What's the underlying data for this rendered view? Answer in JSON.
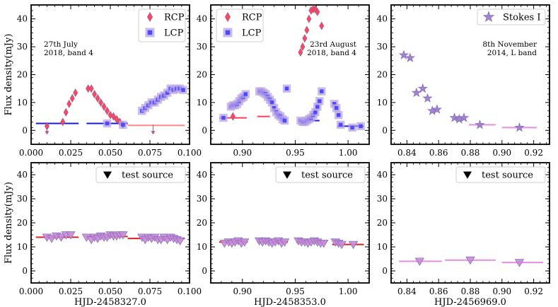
{
  "figure": {
    "ylabel": "Flux density(mJy)"
  },
  "chart_data": [
    {
      "id": "p1",
      "type": "scatter",
      "row": 0,
      "col": 0,
      "xlim": [
        0.0,
        0.1
      ],
      "ylim": [
        -5,
        45
      ],
      "xticks": [
        0.0,
        0.025,
        0.05,
        0.075,
        0.1
      ],
      "xtick_labels": [
        "0.000",
        "0.025",
        "0.050",
        "0.075",
        "0.100"
      ],
      "yticks": [
        0,
        10,
        20,
        30,
        40
      ],
      "ytick_labels": [
        "0",
        "10",
        "20",
        "30",
        "40"
      ],
      "xlabel": "",
      "ylabel": "Flux density(mJy)",
      "show_xtick_labels": true,
      "annotation": [
        "27th July",
        "2018, band 4"
      ],
      "annotation_anchor": "upper-left",
      "legend": {
        "placement": "top-right",
        "entries": [
          {
            "label": "RCP",
            "marker": "diamond",
            "color": "#ff3d5a"
          },
          {
            "label": "LCP",
            "marker": "square",
            "color": "#4a4aff"
          }
        ]
      },
      "series": [
        {
          "name": "RCP",
          "marker": "diamond",
          "color": "#ff3d5a",
          "x": [
            0.01,
            0.02,
            0.022,
            0.024,
            0.026,
            0.028,
            0.036,
            0.038,
            0.04,
            0.042,
            0.044,
            0.046,
            0.048,
            0.05,
            0.052,
            0.054,
            0.056,
            0.058
          ],
          "y": [
            1.5,
            3.0,
            6.5,
            9.5,
            11.5,
            13.5,
            15.0,
            15.0,
            13.0,
            11.5,
            10.0,
            8.5,
            7.0,
            5.5,
            5.0,
            4.0,
            3.0,
            2.0
          ]
        },
        {
          "name": "LCP",
          "marker": "square",
          "color": "#4a4aff",
          "x": [
            0.048,
            0.058,
            0.07,
            0.072,
            0.074,
            0.076,
            0.078,
            0.08,
            0.082,
            0.084,
            0.086,
            0.088,
            0.09,
            0.092,
            0.094,
            0.096
          ],
          "y": [
            2.5,
            2.0,
            7.0,
            8.0,
            9.0,
            10.0,
            10.0,
            11.0,
            12.0,
            12.5,
            13.5,
            15.0,
            14.5,
            15.0,
            15.0,
            14.5
          ]
        }
      ],
      "upper_limits": [
        {
          "x": 0.01,
          "y": 0.0,
          "color": "#ff3d5a"
        },
        {
          "x": 0.077,
          "y": 0.0,
          "color": "#ff3d5a"
        }
      ],
      "lines": [
        {
          "x": [
            0.003,
            0.03
          ],
          "y": 2.5,
          "color": "#1a1ad8"
        },
        {
          "x": 0.035,
          "x_end": 0.061,
          "y": 2.5,
          "color": "#1a1ad8"
        },
        {
          "x": 0.061,
          "x_end": 0.097,
          "y": 1.8,
          "color": "#ff8a8a"
        }
      ]
    },
    {
      "id": "p2",
      "type": "scatter",
      "row": 0,
      "col": 1,
      "xlim": [
        0.87,
        1.02
      ],
      "ylim": [
        -5,
        45
      ],
      "xticks": [
        0.9,
        0.95,
        1.0
      ],
      "xtick_labels": [
        "0.90",
        "0.95",
        "1.00"
      ],
      "yticks": [
        0,
        10,
        20,
        30,
        40
      ],
      "ytick_labels": [
        "0",
        "10",
        "20",
        "30",
        "40"
      ],
      "xlabel": "",
      "ylabel": "",
      "annotation": [
        "23rd August",
        "2018, band 4"
      ],
      "annotation_anchor": "upper-right",
      "legend": {
        "placement": "top-left",
        "entries": [
          {
            "label": "RCP",
            "marker": "diamond",
            "color": "#ff3d5a"
          },
          {
            "label": "LCP",
            "marker": "square",
            "color": "#4a4aff"
          }
        ]
      },
      "series": [
        {
          "name": "RCP",
          "marker": "diamond",
          "color": "#ff3d5a",
          "x": [
            0.891,
            0.955,
            0.957,
            0.959,
            0.961,
            0.963,
            0.965,
            0.967,
            0.969,
            0.971,
            0.975
          ],
          "y": [
            5.0,
            28.0,
            30.0,
            33.0,
            36.0,
            40.0,
            43.0,
            43.5,
            43.5,
            42.5,
            37.5
          ]
        },
        {
          "name": "LCP",
          "marker": "square",
          "color": "#4a4aff",
          "x": [
            0.882,
            0.889,
            0.891,
            0.893,
            0.895,
            0.897,
            0.899,
            0.901,
            0.903,
            0.916,
            0.918,
            0.92,
            0.922,
            0.924,
            0.926,
            0.928,
            0.93,
            0.932,
            0.934,
            0.936,
            0.938,
            0.94,
            0.942,
            0.955,
            0.957,
            0.959,
            0.961,
            0.963,
            0.965,
            0.967,
            0.969,
            0.971,
            0.973,
            0.975,
            0.987,
            0.989,
            0.991,
            0.993,
            1.004,
            1.012
          ],
          "y": [
            4.5,
            8.5,
            9.0,
            9.0,
            9.5,
            10.5,
            11.5,
            12.0,
            13.0,
            14.0,
            14.0,
            13.5,
            13.0,
            12.0,
            11.0,
            10.0,
            8.0,
            6.5,
            5.5,
            5.0,
            4.0,
            3.5,
            15.0,
            3.5,
            3.0,
            3.0,
            3.5,
            4.0,
            4.5,
            5.5,
            6.5,
            8.5,
            10.5,
            14.0,
            9.5,
            8.0,
            5.5,
            2.0,
            1.0,
            1.5
          ]
        }
      ],
      "upper_limits": [],
      "lines": [
        {
          "x": 0.878,
          "x_end": 0.904,
          "y": 4.5,
          "color": "#ff3d5a"
        },
        {
          "x": 0.914,
          "x_end": 0.926,
          "y": 5.0,
          "color": "#ff3d5a"
        },
        {
          "x": 0.953,
          "x_end": 0.973,
          "y": 3.5,
          "color": "#1a1ad8"
        },
        {
          "x": 0.99,
          "x_end": 1.015,
          "y": 1.5,
          "color": "#1a1ad8"
        }
      ]
    },
    {
      "id": "p3",
      "type": "scatter",
      "row": 0,
      "col": 2,
      "xlim": [
        0.83,
        0.93
      ],
      "ylim": [
        -5,
        45
      ],
      "xticks": [
        0.84,
        0.86,
        0.88,
        0.9,
        0.92
      ],
      "xtick_labels": [
        "0.84",
        "0.86",
        "0.88",
        "0.90",
        "0.92"
      ],
      "yticks": [
        0,
        10,
        20,
        30,
        40
      ],
      "ytick_labels": [
        "0",
        "10",
        "20",
        "30",
        "40"
      ],
      "xlabel": "",
      "ylabel": "",
      "annotation": [
        "8th November",
        "2014, L band"
      ],
      "annotation_anchor": "upper-right",
      "legend": {
        "placement": "top-right",
        "entries": [
          {
            "label": "Stokes I",
            "marker": "star",
            "color": "#9a7fc8"
          }
        ]
      },
      "series": [
        {
          "name": "Stokes I",
          "marker": "star",
          "color": "#9a7fc8",
          "x": [
            0.838,
            0.842,
            0.846,
            0.85,
            0.853,
            0.856,
            0.859,
            0.87,
            0.873,
            0.876,
            0.886,
            0.911
          ],
          "y": [
            27.0,
            26.0,
            13.5,
            15.0,
            11.5,
            7.0,
            7.5,
            4.5,
            4.0,
            4.5,
            2.0,
            1.0
          ]
        }
      ],
      "upper_limits": [],
      "lines": [
        {
          "x": 0.879,
          "x_end": 0.896,
          "y": 2.0,
          "color": "#e58de0"
        },
        {
          "x": 0.9,
          "x_end": 0.922,
          "y": 1.0,
          "color": "#e58de0"
        }
      ]
    },
    {
      "id": "p4",
      "type": "scatter",
      "row": 1,
      "col": 0,
      "xlim": [
        0.0,
        0.1
      ],
      "ylim": [
        -5,
        45
      ],
      "xticks": [
        0.0,
        0.025,
        0.05,
        0.075,
        0.1
      ],
      "xtick_labels": [
        "0.000",
        "0.025",
        "0.050",
        "0.075",
        "0.100"
      ],
      "yticks": [
        0,
        10,
        20,
        30,
        40
      ],
      "ytick_labels": [
        "0",
        "10",
        "20",
        "30",
        "40"
      ],
      "xlabel": "HJD-2458327.0",
      "ylabel": "Flux density(mJy)",
      "legend": {
        "placement": "top-right",
        "entries": [
          {
            "label": "test source",
            "marker": "triangle-down",
            "color": "#000000"
          }
        ]
      },
      "series": [
        {
          "name": "test source",
          "marker": "triangle-down",
          "color": "#c98bd6",
          "x": [
            0.01,
            0.013,
            0.016,
            0.019,
            0.022,
            0.025,
            0.035,
            0.038,
            0.04,
            0.042,
            0.044,
            0.046,
            0.048,
            0.05,
            0.052,
            0.054,
            0.056,
            0.058,
            0.07,
            0.072,
            0.074,
            0.076,
            0.078,
            0.08,
            0.082,
            0.084,
            0.086,
            0.088,
            0.09,
            0.092,
            0.094
          ],
          "y": [
            14.0,
            13.5,
            14.5,
            14.0,
            15.0,
            15.0,
            14.0,
            13.0,
            14.0,
            13.5,
            14.5,
            14.0,
            14.0,
            15.0,
            14.5,
            14.5,
            15.0,
            15.0,
            14.0,
            13.0,
            14.0,
            13.5,
            14.0,
            13.0,
            13.0,
            14.0,
            13.0,
            14.0,
            13.5,
            13.0,
            12.5
          ]
        }
      ],
      "upper_limits": [],
      "lines": [
        {
          "x": 0.003,
          "x_end": 0.03,
          "y": 14.0,
          "color": "#e02020"
        },
        {
          "x": 0.035,
          "x_end": 0.061,
          "y": 14.3,
          "color": "#e02020"
        },
        {
          "x": 0.061,
          "x_end": 0.097,
          "y": 13.5,
          "color": "#e02020"
        }
      ]
    },
    {
      "id": "p5",
      "type": "scatter",
      "row": 1,
      "col": 1,
      "xlim": [
        0.87,
        1.02
      ],
      "ylim": [
        -5,
        45
      ],
      "xticks": [
        0.9,
        0.95,
        1.0
      ],
      "xtick_labels": [
        "0.90",
        "0.95",
        "1.00"
      ],
      "yticks": [
        0,
        10,
        20,
        30,
        40
      ],
      "ytick_labels": [
        "0",
        "10",
        "20",
        "30",
        "40"
      ],
      "xlabel": "HJD-2458353.0",
      "ylabel": "",
      "legend": {
        "placement": "top-right",
        "entries": [
          {
            "label": "test source",
            "marker": "triangle-down",
            "color": "#000000"
          }
        ]
      },
      "series": [
        {
          "name": "test source",
          "marker": "triangle-down",
          "color": "#c98bd6",
          "x": [
            0.883,
            0.887,
            0.89,
            0.893,
            0.896,
            0.899,
            0.902,
            0.916,
            0.919,
            0.922,
            0.925,
            0.928,
            0.931,
            0.934,
            0.937,
            0.94,
            0.953,
            0.956,
            0.959,
            0.962,
            0.965,
            0.968,
            0.971,
            0.974,
            0.977,
            0.988,
            0.991,
            0.994,
            1.005
          ],
          "y": [
            11.5,
            12.0,
            11.5,
            12.0,
            12.5,
            11.5,
            12.0,
            12.5,
            12.0,
            12.5,
            12.0,
            11.5,
            12.0,
            12.5,
            11.5,
            12.0,
            12.5,
            12.0,
            12.0,
            11.5,
            12.0,
            12.5,
            12.0,
            11.5,
            11.5,
            12.0,
            11.5,
            11.0,
            11.0
          ]
        }
      ],
      "upper_limits": [],
      "lines": [
        {
          "x": 0.878,
          "x_end": 0.905,
          "y": 12.0,
          "color": "#e02020"
        },
        {
          "x": 0.914,
          "x_end": 0.943,
          "y": 12.0,
          "color": "#e02020"
        },
        {
          "x": 0.951,
          "x_end": 0.979,
          "y": 12.0,
          "color": "#e02020"
        },
        {
          "x": 0.985,
          "x_end": 1.015,
          "y": 11.0,
          "color": "#e02020"
        }
      ]
    },
    {
      "id": "p6",
      "type": "scatter",
      "row": 1,
      "col": 2,
      "xlim": [
        0.83,
        0.93
      ],
      "ylim": [
        -5,
        45
      ],
      "xticks": [
        0.84,
        0.86,
        0.88,
        0.9,
        0.92
      ],
      "xtick_labels": [
        "0.84",
        "0.86",
        "0.88",
        "0.90",
        "0.92"
      ],
      "yticks": [
        0,
        10,
        20,
        30,
        40
      ],
      "ytick_labels": [
        "0",
        "10",
        "20",
        "30",
        "40"
      ],
      "xlabel": "HJD-2456969.0",
      "ylabel": "",
      "legend": {
        "placement": "top-right",
        "entries": [
          {
            "label": "test source",
            "marker": "triangle-down",
            "color": "#000000"
          }
        ]
      },
      "series": [
        {
          "name": "test source",
          "marker": "triangle-down",
          "color": "#c98bd6",
          "x": [
            0.848,
            0.88,
            0.911
          ],
          "y": [
            4.0,
            4.5,
            3.5
          ]
        }
      ],
      "upper_limits": [],
      "lines": [
        {
          "x": 0.835,
          "x_end": 0.862,
          "y": 4.0,
          "color": "#e58de0"
        },
        {
          "x": 0.864,
          "x_end": 0.896,
          "y": 4.5,
          "color": "#e58de0"
        },
        {
          "x": 0.9,
          "x_end": 0.926,
          "y": 3.5,
          "color": "#e58de0"
        }
      ]
    }
  ]
}
